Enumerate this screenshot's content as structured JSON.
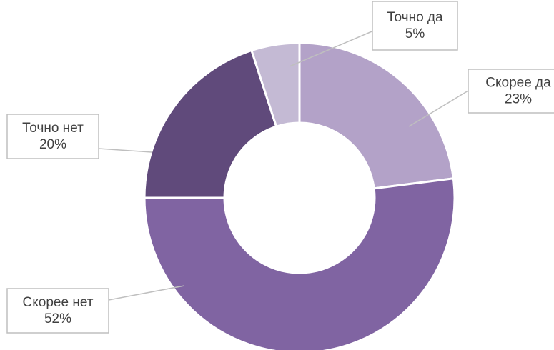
{
  "chart_data": {
    "type": "donut",
    "categories": [
      "Скорее да",
      "Скорее нет",
      "Точно нет",
      "Точно да"
    ],
    "values": [
      23,
      52,
      20,
      5
    ],
    "value_labels": [
      "23%",
      "52%",
      "20%",
      "5%"
    ],
    "colors": [
      "#b3a2c8",
      "#8064a2",
      "#604a7b",
      "#c4bad4"
    ]
  }
}
